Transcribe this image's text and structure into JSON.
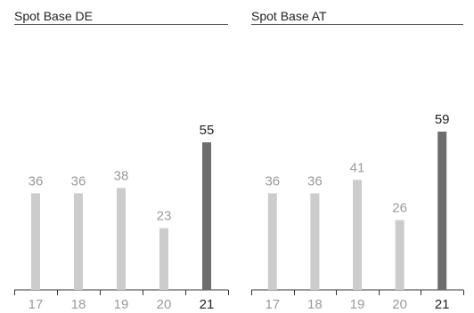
{
  "colors": {
    "bar_muted": "#cccccc",
    "bar_highlight": "#6d6d6d",
    "label_muted": "#9a9a9a",
    "label_highlight": "#222222",
    "axis": "#333333",
    "title_rule": "#555555"
  },
  "chart_data": [
    {
      "type": "bar",
      "title": "Spot Base DE",
      "categories": [
        "17",
        "18",
        "19",
        "20",
        "21"
      ],
      "values": [
        36,
        36,
        38,
        23,
        55
      ],
      "data_labels": [
        "36",
        "36",
        "38",
        "23",
        "55"
      ],
      "highlight_index": 4,
      "xlabel": "",
      "ylabel": "",
      "ylim": [
        0,
        60
      ],
      "grid": false,
      "legend": "none"
    },
    {
      "type": "bar",
      "title": "Spot Base AT",
      "categories": [
        "17",
        "18",
        "19",
        "20",
        "21"
      ],
      "values": [
        36,
        36,
        41,
        26,
        59
      ],
      "data_labels": [
        "36",
        "36",
        "41",
        "26",
        "59"
      ],
      "highlight_index": 4,
      "xlabel": "",
      "ylabel": "",
      "ylim": [
        0,
        60
      ],
      "grid": false,
      "legend": "none"
    }
  ]
}
